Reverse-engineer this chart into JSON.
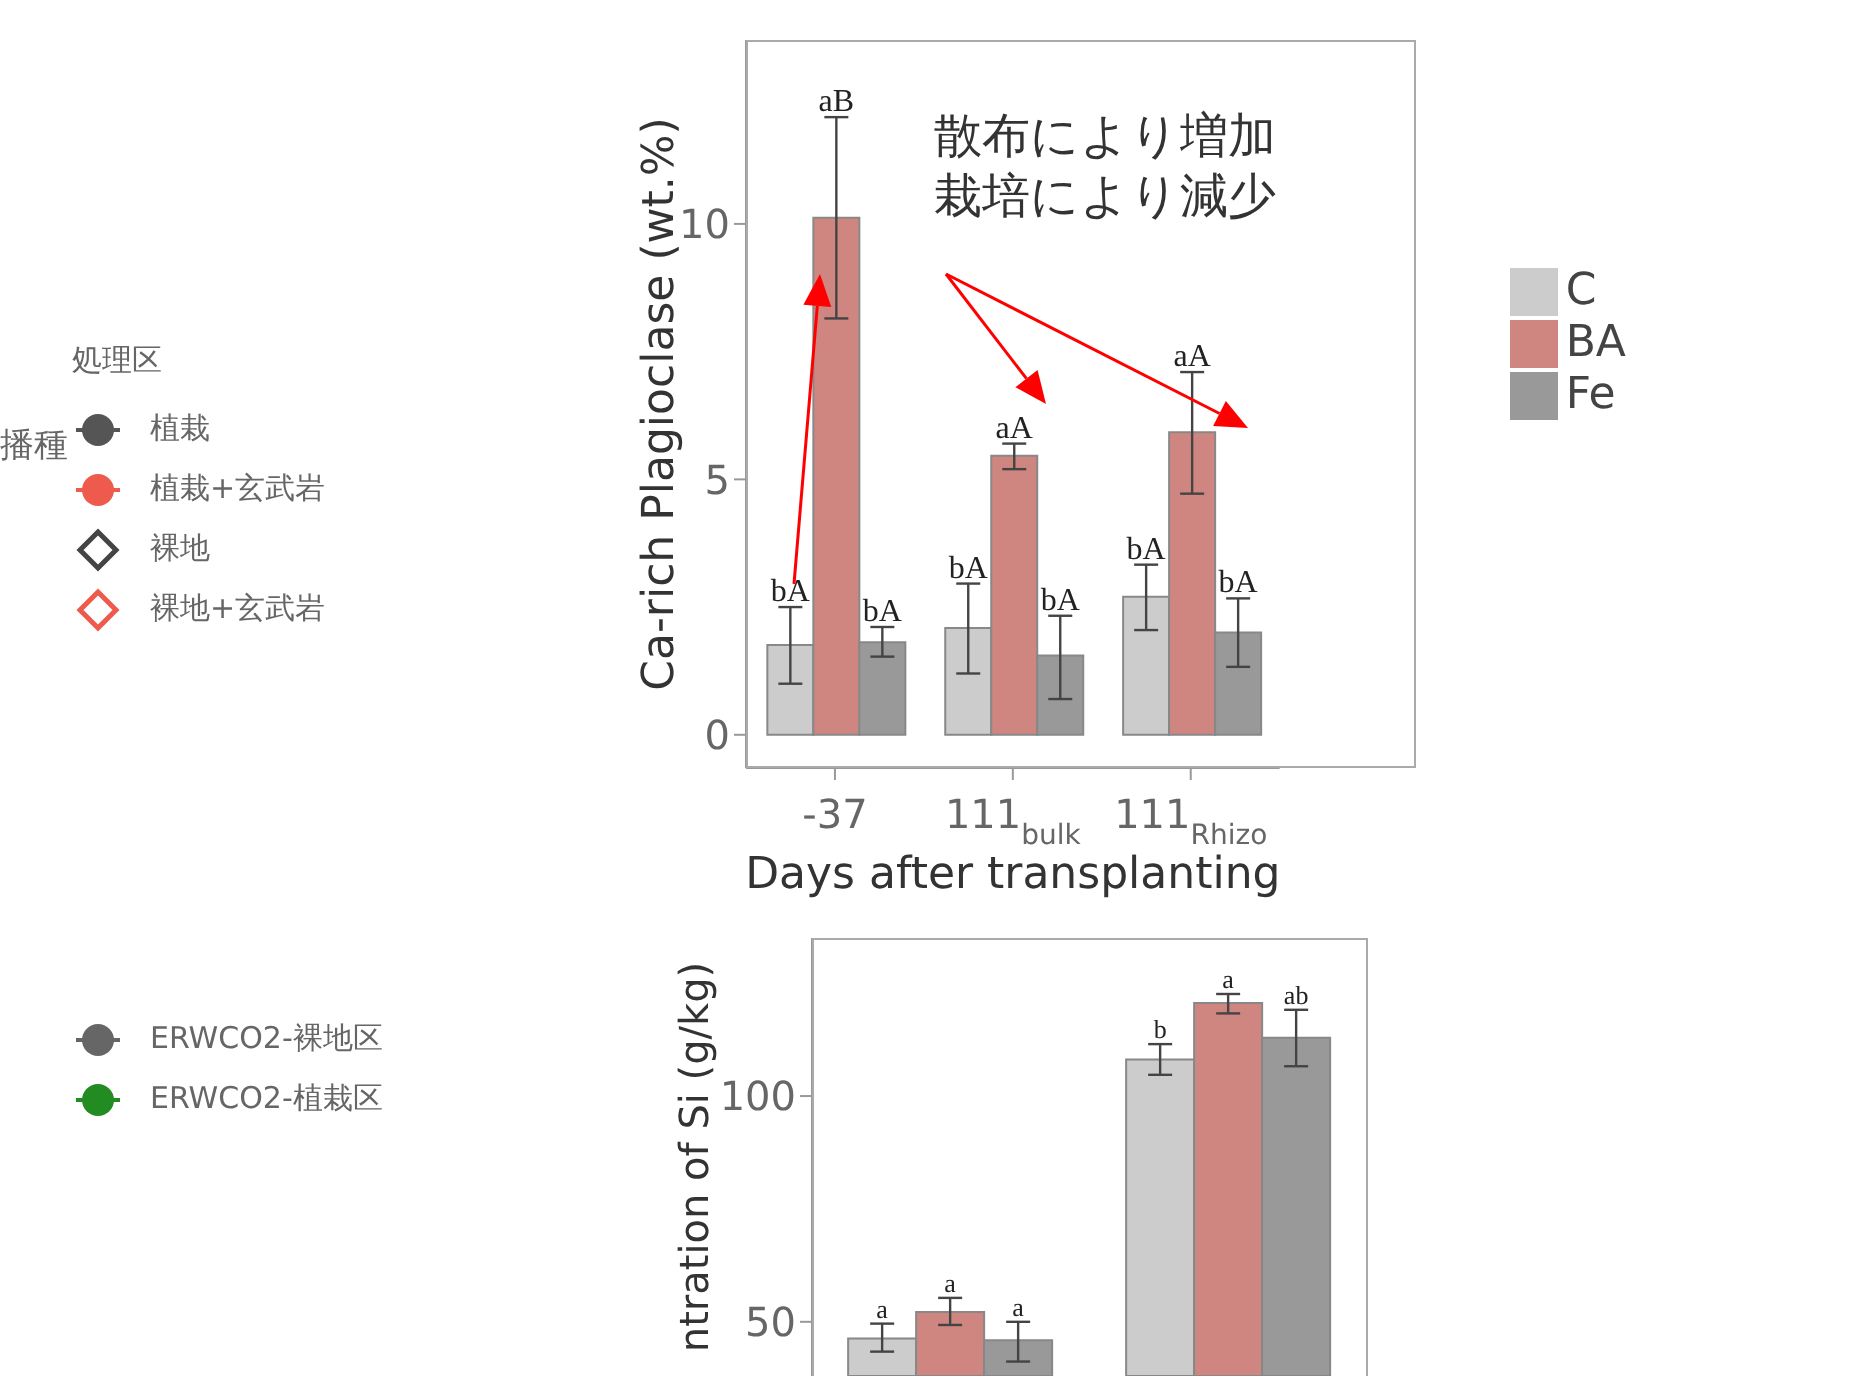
{
  "chart_data": [
    {
      "type": "bar",
      "ylabel": "Ca-rich Plagioclase (wt.%)",
      "xlabel": "Days after transplanting",
      "categories": [
        "-37",
        "111$_{bulk}$",
        "111$_{Rhizo}$"
      ],
      "series": [
        {
          "name": "C",
          "color": "#cccccc",
          "values": [
            1.76,
            2.09,
            2.7
          ],
          "errors": [
            [
              1.0,
              2.5
            ],
            [
              1.2,
              2.96
            ],
            [
              2.05,
              3.33
            ]
          ],
          "value_labels": [
            "bA",
            "bA",
            "bA"
          ]
        },
        {
          "name": "BA",
          "color": "#d08680",
          "values": [
            10.12,
            5.46,
            5.92
          ],
          "errors": [
            [
              8.15,
              12.09
            ],
            [
              5.2,
              5.7
            ],
            [
              4.72,
              7.1
            ]
          ],
          "value_labels": [
            "aB",
            "aA",
            "aA"
          ]
        },
        {
          "name": "Fe",
          "color": "#999999",
          "values": [
            1.81,
            1.55,
            2.0
          ],
          "errors": [
            [
              1.53,
              2.11
            ],
            [
              0.7,
              2.33
            ],
            [
              1.33,
              2.67
            ]
          ],
          "value_labels": [
            "bA",
            "bA",
            "bA"
          ]
        }
      ],
      "ylim": [
        -0.65,
        13.6
      ],
      "yticks": [
        0,
        5,
        10
      ],
      "grid": false,
      "legend": "right",
      "annotations": [
        "散布により増加",
        "栽培により減少"
      ]
    },
    {
      "type": "bar",
      "ylabel": "ntration of Si (g/kg)",
      "categories": [
        null,
        null
      ],
      "tick_labels": "y",
      "series": [
        {
          "color": "#cccccc",
          "values": [
            46.3,
            108.1
          ],
          "errors": [
            [
              43.4,
              49.6
            ],
            [
              104.7,
              111.5
            ]
          ],
          "value_labels": [
            "a",
            "b"
          ]
        },
        {
          "color": "#d08680",
          "values": [
            52.2,
            120.6
          ],
          "errors": [
            [
              49.3,
              55.3
            ],
            [
              118.3,
              122.6
            ]
          ],
          "value_labels": [
            "a",
            "a"
          ]
        },
        {
          "color": "#999999",
          "values": [
            45.9,
            112.9
          ],
          "errors": [
            [
              41.2,
              50.0
            ],
            [
              106.6,
              119.1
            ]
          ],
          "value_labels": [
            "a",
            "ab"
          ]
        }
      ],
      "ylim": [
        38,
        135
      ],
      "yticks": [
        50,
        100
      ],
      "grid": false,
      "legend": false
    },
    {
      "type": "other",
      "legend_title": "処理区",
      "annotations": [
        "播種",
        "植栽",
        "植栽+玄武岩",
        "裸地",
        "裸地+玄武岩",
        "ERWCO2-裸地区",
        "ERWCO2-植栽区"
      ]
    }
  ]
}
